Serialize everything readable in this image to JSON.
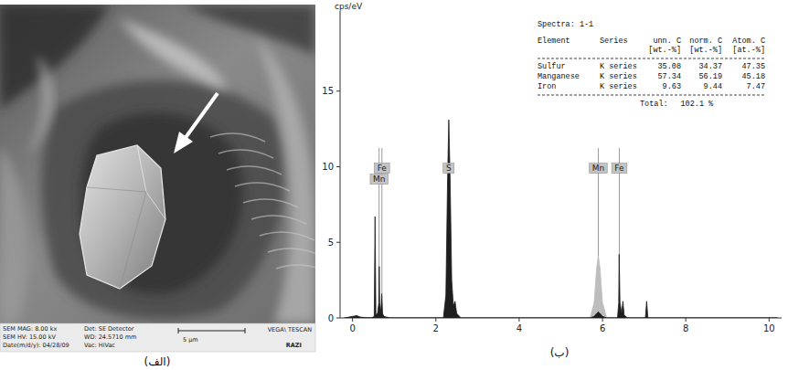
{
  "chart_data": {
    "type": "area",
    "y_label": "cps/eV",
    "xlim": [
      -0.3,
      10.3
    ],
    "xticks": [
      0,
      2,
      4,
      6,
      8,
      10
    ],
    "ylim": [
      0,
      20.3
    ],
    "yticks": [
      0,
      5,
      10,
      15
    ],
    "grid": false,
    "x": [
      -0.2,
      0.0,
      0.1,
      0.2,
      0.45,
      0.52,
      0.54,
      0.56,
      0.6,
      0.63,
      0.64,
      0.65,
      0.68,
      0.7,
      0.72,
      0.75,
      0.9,
      2.18,
      2.24,
      2.28,
      2.31,
      2.34,
      2.38,
      2.42,
      2.46,
      2.5,
      2.6,
      5.7,
      5.8,
      5.86,
      5.9,
      5.94,
      6.0,
      6.1,
      6.36,
      6.39,
      6.4,
      6.42,
      6.46,
      6.49,
      6.52,
      6.6,
      7.03,
      7.06,
      7.09,
      7.2,
      10.2
    ],
    "series": [
      {
        "color": "#bdbdbd",
        "values": [
          null,
          null,
          null,
          null,
          null,
          null,
          null,
          null,
          null,
          null,
          null,
          null,
          null,
          null,
          null,
          null,
          null,
          null,
          null,
          null,
          null,
          null,
          null,
          null,
          null,
          null,
          null,
          0,
          1,
          3.3,
          4.1,
          3.3,
          1,
          0,
          null,
          null,
          null,
          null,
          null,
          null,
          null,
          null,
          null,
          null,
          null,
          null,
          null
        ]
      },
      {
        "color": "#1e1e1e",
        "values": [
          0,
          0.1,
          0.15,
          0.05,
          0,
          0.1,
          6.7,
          0.2,
          0.3,
          1,
          3.4,
          1,
          0.4,
          1.6,
          0.3,
          0.1,
          0,
          0,
          1.5,
          9,
          13.1,
          9.5,
          2.5,
          0.8,
          1.1,
          0.3,
          0,
          0,
          0.1,
          0.3,
          0.4,
          0.3,
          0.1,
          0,
          0,
          1,
          4.2,
          1,
          0.3,
          1.1,
          0.2,
          0,
          0,
          1.1,
          0,
          0,
          0
        ]
      }
    ],
    "element_lines": [
      {
        "label": "Fe",
        "energy": 0.705
      },
      {
        "label": "Mn",
        "energy": 0.637
      },
      {
        "label": "S",
        "energy": 2.307
      },
      {
        "label": "Mn",
        "energy": 5.899
      },
      {
        "label": "Fe",
        "energy": 6.404
      }
    ],
    "table": {
      "title": "Spectra: 1-1",
      "columns": [
        "Element",
        "Series",
        "unn. C",
        "norm. C",
        "Atom. C"
      ],
      "units": [
        "[wt.-%]",
        "[wt.-%]",
        "[at.-%]"
      ],
      "rows": [
        [
          "Sulfur",
          "K series",
          35.08,
          34.37,
          47.35
        ],
        [
          "Manganese",
          "K series",
          57.34,
          56.19,
          45.18
        ],
        [
          "Iron",
          "K series",
          9.63,
          9.44,
          7.47
        ]
      ],
      "total_label": "Total:",
      "total": 102.1,
      "total_unit": "%"
    }
  },
  "sem_image": {
    "info": [
      [
        "SEM MAG: 8.00 kx",
        "Det: SE Detector"
      ],
      [
        "SEM HV: 15.00 kV",
        "WD: 24.5710 mm"
      ],
      [
        "Date(m/d/y): 04/28/09",
        "Vac: HiVac"
      ]
    ],
    "scale_bar": "5 μm",
    "brand": "VEGA\\ TESCAN",
    "logo": "RAZI"
  },
  "panel_labels": [
    "(الف)",
    "(ب)"
  ]
}
